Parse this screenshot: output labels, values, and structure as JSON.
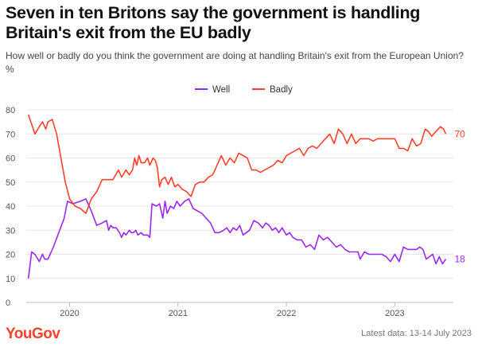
{
  "header": {
    "title": "Seven in ten Britons say the government is handling Britain's exit from the EU badly",
    "subtitle": "How well or badly do you think the government are doing at handling Britain's exit from the European Union? %"
  },
  "footer": {
    "logo": "YouGov",
    "note": "Latest data: 13-14 July 2023"
  },
  "chart_data": {
    "type": "line",
    "title": "Seven in ten Britons say the government is handling Britain's exit from the EU badly",
    "subtitle": "How well or badly do you think the government are doing at handling Britain's exit from the European Union? %",
    "xlabel": "",
    "ylabel": "",
    "ylim": [
      0,
      80
    ],
    "yticks": [
      0,
      10,
      20,
      30,
      40,
      50,
      60,
      70,
      80
    ],
    "xlim": [
      2019.6,
      2023.54
    ],
    "xticks": [
      {
        "value": 2020,
        "label": "2020"
      },
      {
        "value": 2021,
        "label": "2021"
      },
      {
        "value": 2022,
        "label": "2022"
      },
      {
        "value": 2023,
        "label": "2023"
      }
    ],
    "grid": true,
    "legend_position": "top-center",
    "series": [
      {
        "name": "Well",
        "color": "#9b28f0",
        "end_label": "18",
        "points": [
          [
            2019.62,
            10
          ],
          [
            2019.65,
            21
          ],
          [
            2019.68,
            20
          ],
          [
            2019.72,
            17
          ],
          [
            2019.75,
            20
          ],
          [
            2019.77,
            18
          ],
          [
            2019.8,
            18
          ],
          [
            2019.85,
            23
          ],
          [
            2019.9,
            29
          ],
          [
            2019.95,
            35
          ],
          [
            2019.98,
            42
          ],
          [
            2020.03,
            41
          ],
          [
            2020.1,
            42
          ],
          [
            2020.15,
            43
          ],
          [
            2020.2,
            38
          ],
          [
            2020.25,
            32
          ],
          [
            2020.3,
            33
          ],
          [
            2020.34,
            34
          ],
          [
            2020.36,
            30
          ],
          [
            2020.38,
            32
          ],
          [
            2020.4,
            31
          ],
          [
            2020.43,
            31
          ],
          [
            2020.46,
            29
          ],
          [
            2020.48,
            27
          ],
          [
            2020.5,
            29
          ],
          [
            2020.52,
            28
          ],
          [
            2020.55,
            30
          ],
          [
            2020.57,
            29
          ],
          [
            2020.59,
            29
          ],
          [
            2020.61,
            30
          ],
          [
            2020.63,
            28
          ],
          [
            2020.66,
            29
          ],
          [
            2020.68,
            28
          ],
          [
            2020.72,
            28
          ],
          [
            2020.74,
            27
          ],
          [
            2020.76,
            41
          ],
          [
            2020.8,
            40
          ],
          [
            2020.83,
            41
          ],
          [
            2020.86,
            35
          ],
          [
            2020.88,
            42
          ],
          [
            2020.9,
            37
          ],
          [
            2020.93,
            40
          ],
          [
            2020.96,
            39
          ],
          [
            2020.99,
            42
          ],
          [
            2021.02,
            40
          ],
          [
            2021.06,
            42
          ],
          [
            2021.1,
            43
          ],
          [
            2021.14,
            39
          ],
          [
            2021.18,
            38
          ],
          [
            2021.22,
            37
          ],
          [
            2021.26,
            35
          ],
          [
            2021.3,
            33
          ],
          [
            2021.34,
            29
          ],
          [
            2021.38,
            29
          ],
          [
            2021.42,
            30
          ],
          [
            2021.45,
            31
          ],
          [
            2021.48,
            29
          ],
          [
            2021.51,
            31
          ],
          [
            2021.54,
            30
          ],
          [
            2021.57,
            32
          ],
          [
            2021.6,
            28
          ],
          [
            2021.63,
            29
          ],
          [
            2021.66,
            30
          ],
          [
            2021.7,
            34
          ],
          [
            2021.74,
            33
          ],
          [
            2021.78,
            31
          ],
          [
            2021.81,
            33
          ],
          [
            2021.84,
            32
          ],
          [
            2021.87,
            30
          ],
          [
            2021.9,
            31
          ],
          [
            2021.93,
            29
          ],
          [
            2021.96,
            31
          ],
          [
            2022.0,
            28
          ],
          [
            2022.03,
            29
          ],
          [
            2022.06,
            27
          ],
          [
            2022.1,
            26
          ],
          [
            2022.14,
            26
          ],
          [
            2022.18,
            23
          ],
          [
            2022.22,
            24
          ],
          [
            2022.26,
            22
          ],
          [
            2022.3,
            28
          ],
          [
            2022.34,
            26
          ],
          [
            2022.38,
            27
          ],
          [
            2022.42,
            25
          ],
          [
            2022.46,
            23
          ],
          [
            2022.5,
            24
          ],
          [
            2022.54,
            22
          ],
          [
            2022.58,
            21
          ],
          [
            2022.62,
            21
          ],
          [
            2022.66,
            21
          ],
          [
            2022.68,
            18
          ],
          [
            2022.72,
            21
          ],
          [
            2022.76,
            20
          ],
          [
            2022.8,
            20
          ],
          [
            2022.84,
            20
          ],
          [
            2022.88,
            20
          ],
          [
            2022.92,
            19
          ],
          [
            2022.96,
            17
          ],
          [
            2023.0,
            20
          ],
          [
            2023.04,
            17
          ],
          [
            2023.08,
            23
          ],
          [
            2023.12,
            22
          ],
          [
            2023.16,
            22
          ],
          [
            2023.2,
            22
          ],
          [
            2023.23,
            23
          ],
          [
            2023.26,
            22
          ],
          [
            2023.29,
            18
          ],
          [
            2023.32,
            19
          ],
          [
            2023.35,
            20
          ],
          [
            2023.38,
            16
          ],
          [
            2023.41,
            19
          ],
          [
            2023.44,
            16
          ],
          [
            2023.47,
            18
          ]
        ]
      },
      {
        "name": "Badly",
        "color": "#ff412c",
        "end_label": "70",
        "points": [
          [
            2019.62,
            78
          ],
          [
            2019.65,
            74
          ],
          [
            2019.68,
            70
          ],
          [
            2019.72,
            73
          ],
          [
            2019.75,
            75
          ],
          [
            2019.78,
            72
          ],
          [
            2019.8,
            75
          ],
          [
            2019.84,
            76
          ],
          [
            2019.88,
            70
          ],
          [
            2019.92,
            60
          ],
          [
            2019.96,
            50
          ],
          [
            2020.0,
            43
          ],
          [
            2020.05,
            40
          ],
          [
            2020.1,
            39
          ],
          [
            2020.15,
            37
          ],
          [
            2020.2,
            43
          ],
          [
            2020.25,
            46
          ],
          [
            2020.3,
            51
          ],
          [
            2020.35,
            51
          ],
          [
            2020.4,
            51
          ],
          [
            2020.45,
            55
          ],
          [
            2020.48,
            52
          ],
          [
            2020.52,
            55
          ],
          [
            2020.55,
            53
          ],
          [
            2020.58,
            55
          ],
          [
            2020.6,
            60
          ],
          [
            2020.62,
            57
          ],
          [
            2020.64,
            61
          ],
          [
            2020.66,
            58
          ],
          [
            2020.69,
            58
          ],
          [
            2020.72,
            60
          ],
          [
            2020.74,
            57
          ],
          [
            2020.77,
            60
          ],
          [
            2020.79,
            59
          ],
          [
            2020.81,
            56
          ],
          [
            2020.83,
            48
          ],
          [
            2020.85,
            51
          ],
          [
            2020.88,
            52
          ],
          [
            2020.91,
            49
          ],
          [
            2020.94,
            52
          ],
          [
            2020.97,
            48
          ],
          [
            2021.0,
            49
          ],
          [
            2021.04,
            47
          ],
          [
            2021.08,
            46
          ],
          [
            2021.12,
            44
          ],
          [
            2021.16,
            49
          ],
          [
            2021.2,
            50
          ],
          [
            2021.24,
            50
          ],
          [
            2021.28,
            52
          ],
          [
            2021.32,
            53
          ],
          [
            2021.36,
            57
          ],
          [
            2021.4,
            61
          ],
          [
            2021.44,
            57
          ],
          [
            2021.48,
            60
          ],
          [
            2021.52,
            58
          ],
          [
            2021.56,
            62
          ],
          [
            2021.6,
            61
          ],
          [
            2021.64,
            60
          ],
          [
            2021.68,
            55
          ],
          [
            2021.72,
            55
          ],
          [
            2021.76,
            54
          ],
          [
            2021.8,
            55
          ],
          [
            2021.84,
            56
          ],
          [
            2021.88,
            57
          ],
          [
            2021.92,
            59
          ],
          [
            2021.96,
            58
          ],
          [
            2022.0,
            61
          ],
          [
            2022.04,
            62
          ],
          [
            2022.08,
            63
          ],
          [
            2022.12,
            64
          ],
          [
            2022.16,
            61
          ],
          [
            2022.2,
            64
          ],
          [
            2022.24,
            65
          ],
          [
            2022.28,
            64
          ],
          [
            2022.32,
            66
          ],
          [
            2022.36,
            68
          ],
          [
            2022.4,
            70
          ],
          [
            2022.44,
            66
          ],
          [
            2022.48,
            72
          ],
          [
            2022.52,
            70
          ],
          [
            2022.56,
            66
          ],
          [
            2022.6,
            70
          ],
          [
            2022.64,
            66
          ],
          [
            2022.68,
            68
          ],
          [
            2022.72,
            68
          ],
          [
            2022.76,
            68
          ],
          [
            2022.8,
            67
          ],
          [
            2022.84,
            68
          ],
          [
            2022.88,
            68
          ],
          [
            2022.92,
            68
          ],
          [
            2022.96,
            68
          ],
          [
            2023.0,
            68
          ],
          [
            2023.04,
            64
          ],
          [
            2023.08,
            64
          ],
          [
            2023.12,
            63
          ],
          [
            2023.16,
            68
          ],
          [
            2023.2,
            65
          ],
          [
            2023.24,
            66
          ],
          [
            2023.28,
            72
          ],
          [
            2023.31,
            71
          ],
          [
            2023.34,
            69
          ],
          [
            2023.38,
            71
          ],
          [
            2023.42,
            73
          ],
          [
            2023.45,
            72
          ],
          [
            2023.47,
            70
          ]
        ]
      }
    ]
  }
}
